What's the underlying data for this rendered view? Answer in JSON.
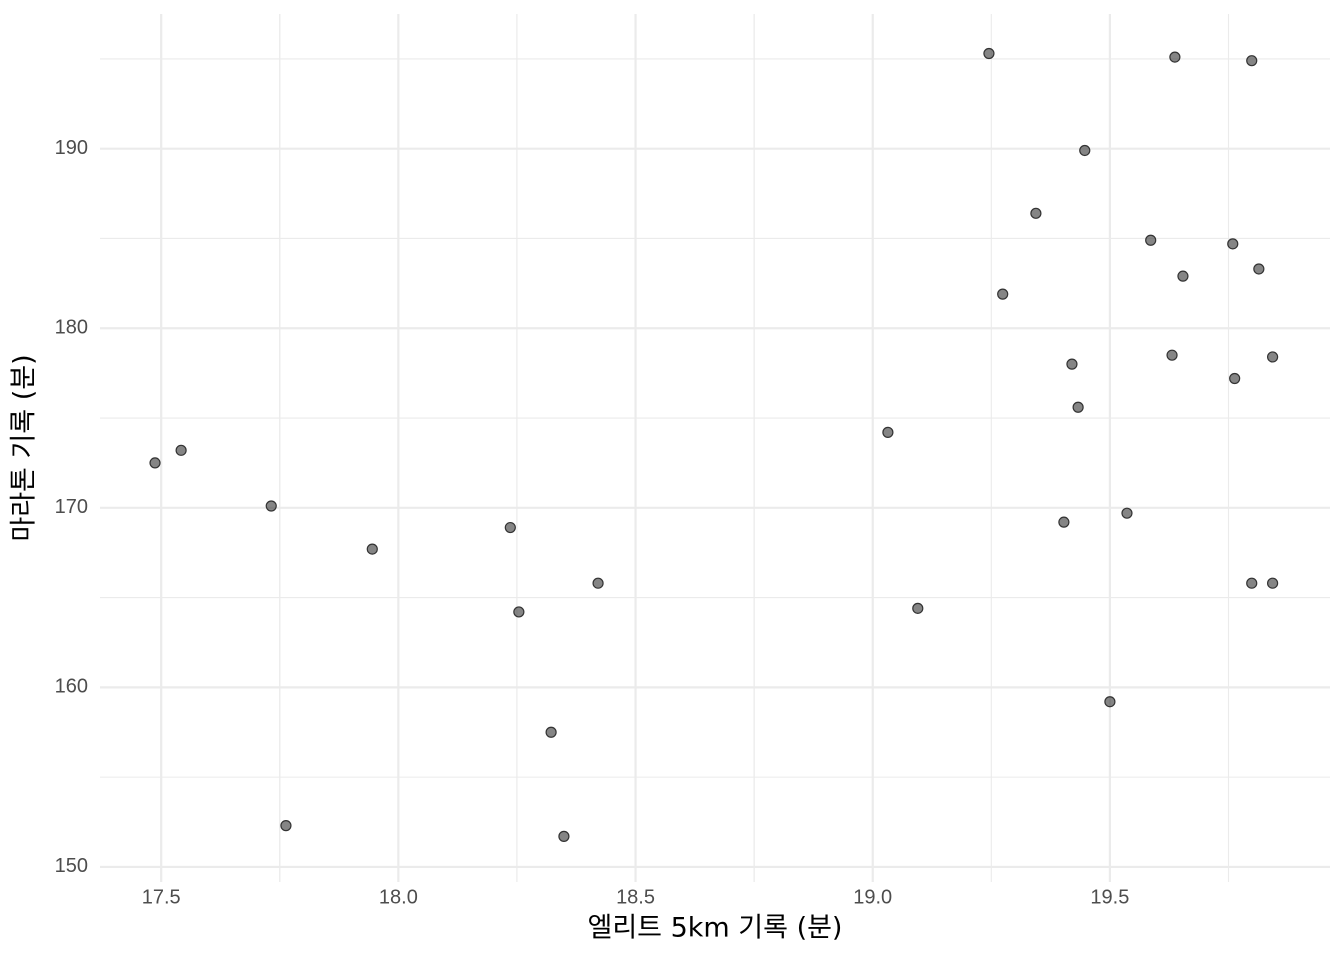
{
  "chart_data": {
    "type": "scatter",
    "x_label": "엘리트 5km 기록 (분)",
    "y_label": "마라톤 기록 (분)",
    "color": "#333333",
    "grid": true,
    "xlim": [
      17.371,
      19.964
    ],
    "ylim": [
      149.16,
      197.5
    ],
    "xticks": [
      17.5,
      {
        "value": 18.0,
        "label": "18.0"
      },
      18.5,
      {
        "value": 19.0,
        "label": "19.0"
      },
      19.5
    ],
    "yticks": [
      150,
      160,
      170,
      180,
      190
    ],
    "x": [
      17.487,
      17.542,
      17.732,
      17.763,
      17.945,
      18.236,
      18.254,
      18.322,
      18.349,
      18.421,
      19.032,
      19.095,
      19.245,
      19.274,
      19.344,
      19.403,
      19.42,
      19.433,
      19.447,
      19.5,
      19.536,
      19.586,
      19.631,
      19.637,
      19.654,
      19.759,
      19.763,
      19.799,
      19.799,
      19.814,
      19.843,
      19.843
    ],
    "y": [
      172.5,
      173.2,
      170.1,
      152.3,
      167.7,
      168.9,
      164.2,
      157.5,
      151.7,
      165.8,
      174.2,
      164.4,
      195.3,
      181.9,
      186.4,
      169.2,
      178.0,
      175.6,
      189.9,
      159.2,
      169.7,
      184.9,
      178.5,
      195.1,
      182.9,
      184.7,
      177.2,
      194.9,
      165.8,
      183.3,
      178.4,
      165.8
    ]
  }
}
